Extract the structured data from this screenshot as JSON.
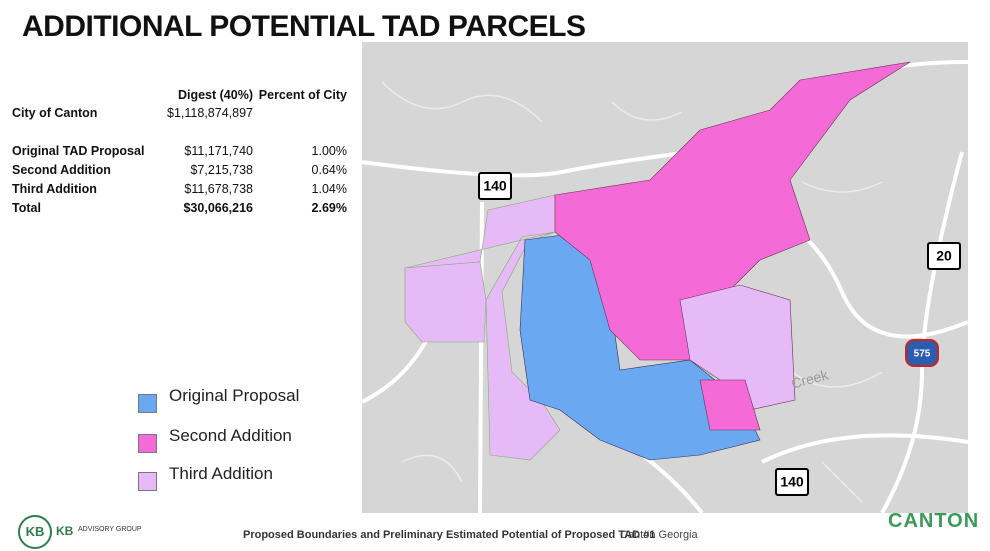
{
  "header": {
    "title": "ADDITIONAL POTENTIAL TAD PARCELS"
  },
  "table": {
    "columns": [
      "Digest (40%)",
      "Percent of City"
    ],
    "rows": [
      {
        "label": "City of Canton",
        "cells": [
          "$1,118,874,897"
        ],
        "bold": false
      },
      {
        "label": "Original TAD Proposal",
        "cells": [
          "$11,171,740",
          "1.00%"
        ],
        "bold": false
      },
      {
        "label": "Second Addition",
        "cells": [
          "$7,215,738",
          "0.64%"
        ],
        "bold": false
      },
      {
        "label": "Third Addition",
        "cells": [
          "$11,678,738",
          "1.04%"
        ],
        "bold": false
      },
      {
        "label": "Total",
        "cells": [
          "$30,066,216",
          "2.69%"
        ],
        "bold": true
      }
    ]
  },
  "legend": [
    {
      "name": "Original Proposal",
      "color": "#6aa8f2"
    },
    {
      "name": "Second Addition",
      "color": "#f46ad6"
    },
    {
      "name": "Third Addition",
      "color": "#e6baf6"
    }
  ],
  "map": {
    "shields": [
      "140",
      "20",
      "575",
      "140"
    ],
    "label": "Creek"
  },
  "footer": {
    "logo": "KB",
    "logo_text": "ADVISORY GROUP",
    "caption": "Proposed Boundaries and Preliminary Estimated Potential of Proposed TAD #1",
    "place": "Canton Georgia",
    "city_logo": "CANTON"
  }
}
